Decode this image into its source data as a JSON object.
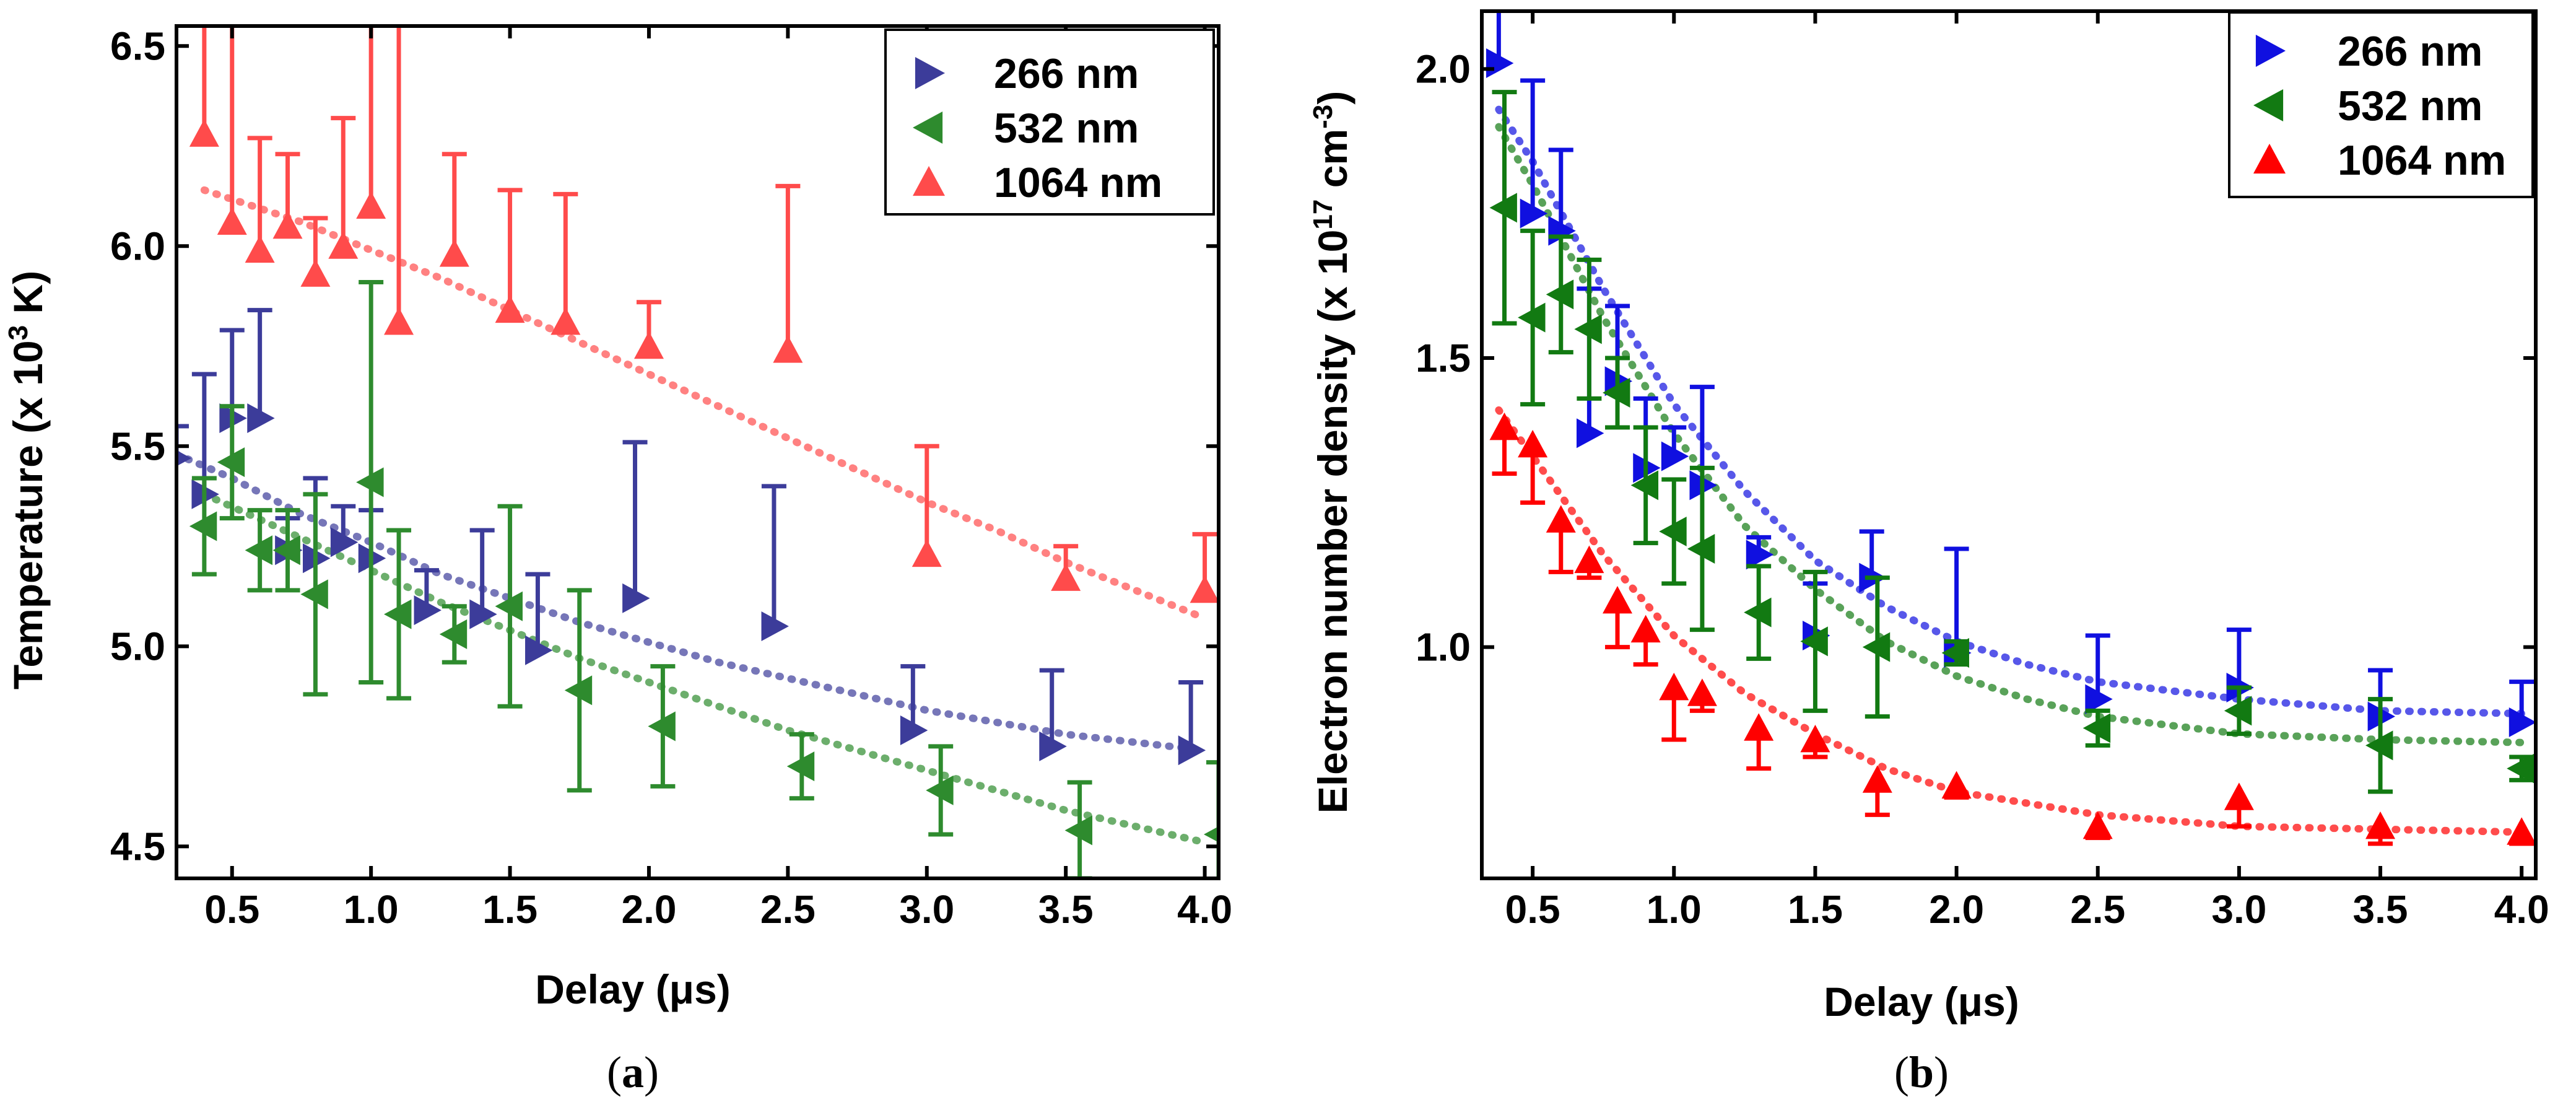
{
  "figure": {
    "panel_a_label": "(a)",
    "panel_b_label": "(b)"
  },
  "chart_data": [
    {
      "id": "a",
      "type": "scatter",
      "title": "",
      "xlabel": "Delay (μs)",
      "ylabel": "Temperature (x 10³ K)",
      "xlim": [
        0.3,
        4.05
      ],
      "ylim": [
        4.42,
        6.55
      ],
      "xticks": [
        0.5,
        1.0,
        1.5,
        2.0,
        2.5,
        3.0,
        3.5,
        4.0
      ],
      "xticklabels": [
        "0.5",
        "1.0",
        "1.5",
        "2.0",
        "2.5",
        "3.0",
        "3.5",
        "4.0"
      ],
      "yticks": [
        4.5,
        5.0,
        5.5,
        6.0,
        6.5
      ],
      "yticklabels": [
        "4.5",
        "5.0",
        "5.5",
        "6.0",
        "6.5"
      ],
      "legend_position": "top-right",
      "series": [
        {
          "name": "266 nm",
          "color": "#3c3c9a",
          "marker": "triangle-right",
          "error_style": "upper",
          "points": [
            {
              "x": 0.3,
              "y": 5.47,
              "err": 0.08
            },
            {
              "x": 0.4,
              "y": 5.38,
              "err": 0.3
            },
            {
              "x": 0.5,
              "y": 5.57,
              "err": 0.22
            },
            {
              "x": 0.6,
              "y": 5.57,
              "err": 0.27
            },
            {
              "x": 0.7,
              "y": 5.24,
              "err": 0.08
            },
            {
              "x": 0.8,
              "y": 5.22,
              "err": 0.2
            },
            {
              "x": 0.9,
              "y": 5.26,
              "err": 0.09
            },
            {
              "x": 1.0,
              "y": 5.22,
              "err": 0.12
            },
            {
              "x": 1.2,
              "y": 5.09,
              "err": 0.1
            },
            {
              "x": 1.4,
              "y": 5.08,
              "err": 0.21
            },
            {
              "x": 1.6,
              "y": 4.99,
              "err": 0.19
            },
            {
              "x": 1.95,
              "y": 5.12,
              "err": 0.39
            },
            {
              "x": 2.45,
              "y": 5.05,
              "err": 0.35
            },
            {
              "x": 2.95,
              "y": 4.79,
              "err": 0.16
            },
            {
              "x": 3.45,
              "y": 4.75,
              "err": 0.19
            },
            {
              "x": 3.95,
              "y": 4.74,
              "err": 0.17
            }
          ],
          "fit": [
            [
              0.3,
              5.48
            ],
            [
              0.5,
              5.42
            ],
            [
              0.75,
              5.33
            ],
            [
              1.0,
              5.26
            ],
            [
              1.25,
              5.18
            ],
            [
              1.5,
              5.12
            ],
            [
              1.75,
              5.06
            ],
            [
              2.0,
              5.01
            ],
            [
              2.25,
              4.96
            ],
            [
              2.5,
              4.92
            ],
            [
              2.75,
              4.88
            ],
            [
              3.0,
              4.84
            ],
            [
              3.25,
              4.81
            ],
            [
              3.5,
              4.78
            ],
            [
              3.75,
              4.76
            ],
            [
              4.0,
              4.74
            ]
          ]
        },
        {
          "name": "532 nm",
          "color": "#2e8b2e",
          "marker": "triangle-left",
          "error_style": "both",
          "points": [
            {
              "x": 0.4,
              "y": 5.3,
              "err": 0.12
            },
            {
              "x": 0.5,
              "y": 5.46,
              "err": 0.14
            },
            {
              "x": 0.6,
              "y": 5.24,
              "err": 0.1
            },
            {
              "x": 0.7,
              "y": 5.24,
              "err": 0.1
            },
            {
              "x": 0.8,
              "y": 5.13,
              "err": 0.25
            },
            {
              "x": 1.0,
              "y": 5.41,
              "err": 0.5
            },
            {
              "x": 1.1,
              "y": 5.08,
              "err": 0.21
            },
            {
              "x": 1.3,
              "y": 5.03,
              "err": 0.07
            },
            {
              "x": 1.5,
              "y": 5.1,
              "err": 0.25
            },
            {
              "x": 1.75,
              "y": 4.89,
              "err": 0.25
            },
            {
              "x": 2.05,
              "y": 4.8,
              "err": 0.15
            },
            {
              "x": 2.55,
              "y": 4.7,
              "err": 0.08
            },
            {
              "x": 3.05,
              "y": 4.64,
              "err": 0.11
            },
            {
              "x": 3.55,
              "y": 4.54,
              "err": 0.12
            },
            {
              "x": 4.05,
              "y": 4.53,
              "err": 0.18
            }
          ],
          "fit": [
            [
              0.4,
              5.38
            ],
            [
              0.75,
              5.27
            ],
            [
              1.0,
              5.19
            ],
            [
              1.25,
              5.11
            ],
            [
              1.5,
              5.04
            ],
            [
              1.75,
              4.97
            ],
            [
              2.0,
              4.91
            ],
            [
              2.25,
              4.85
            ],
            [
              2.5,
              4.79
            ],
            [
              2.75,
              4.74
            ],
            [
              3.0,
              4.69
            ],
            [
              3.25,
              4.64
            ],
            [
              3.5,
              4.59
            ],
            [
              3.75,
              4.55
            ],
            [
              4.0,
              4.51
            ]
          ]
        },
        {
          "name": "1064 nm",
          "color": "#ff4b4b",
          "marker": "triangle-up",
          "error_style": "upper",
          "points": [
            {
              "x": 0.4,
              "y": 6.28,
              "err": 0.6
            },
            {
              "x": 0.5,
              "y": 6.06,
              "err": 0.6
            },
            {
              "x": 0.6,
              "y": 5.99,
              "err": 0.28
            },
            {
              "x": 0.7,
              "y": 6.05,
              "err": 0.18
            },
            {
              "x": 0.8,
              "y": 5.93,
              "err": 0.14
            },
            {
              "x": 0.9,
              "y": 6.0,
              "err": 0.32
            },
            {
              "x": 1.0,
              "y": 6.1,
              "err": 0.6
            },
            {
              "x": 1.1,
              "y": 5.81,
              "err": 0.9
            },
            {
              "x": 1.3,
              "y": 5.98,
              "err": 0.25
            },
            {
              "x": 1.5,
              "y": 5.84,
              "err": 0.3
            },
            {
              "x": 1.7,
              "y": 5.81,
              "err": 0.32
            },
            {
              "x": 2.0,
              "y": 5.75,
              "err": 0.11
            },
            {
              "x": 2.5,
              "y": 5.74,
              "err": 0.41
            },
            {
              "x": 3.0,
              "y": 5.23,
              "err": 0.27
            },
            {
              "x": 3.5,
              "y": 5.17,
              "err": 0.08
            },
            {
              "x": 4.0,
              "y": 5.14,
              "err": 0.14
            }
          ],
          "fit": [
            [
              0.4,
              6.14
            ],
            [
              0.75,
              6.06
            ],
            [
              1.0,
              5.99
            ],
            [
              1.25,
              5.92
            ],
            [
              1.5,
              5.84
            ],
            [
              1.75,
              5.76
            ],
            [
              2.0,
              5.68
            ],
            [
              2.25,
              5.6
            ],
            [
              2.5,
              5.52
            ],
            [
              2.75,
              5.44
            ],
            [
              3.0,
              5.36
            ],
            [
              3.25,
              5.29
            ],
            [
              3.5,
              5.21
            ],
            [
              3.75,
              5.14
            ],
            [
              4.0,
              5.07
            ]
          ]
        }
      ]
    },
    {
      "id": "b",
      "type": "scatter",
      "title": "",
      "xlabel": "Delay (μs)",
      "ylabel": "Electron number density (x 10¹⁷ cm⁻³)",
      "xlim": [
        0.32,
        4.05
      ],
      "ylim": [
        0.6,
        2.1
      ],
      "xticks": [
        0.5,
        1.0,
        1.5,
        2.0,
        2.5,
        3.0,
        3.5,
        4.0
      ],
      "xticklabels": [
        "0.5",
        "1.0",
        "1.5",
        "2.0",
        "2.5",
        "3.0",
        "3.5",
        "4.0"
      ],
      "yticks": [
        1.0,
        1.5,
        2.0
      ],
      "yticklabels": [
        "1.0",
        "1.5",
        "2.0"
      ],
      "legend_position": "top-right",
      "series": [
        {
          "name": "266 nm",
          "color": "#1010e0",
          "marker": "triangle-right",
          "error_style": "upper",
          "points": [
            {
              "x": 0.38,
              "y": 2.01,
              "err": 0.25
            },
            {
              "x": 0.5,
              "y": 1.75,
              "err": 0.23
            },
            {
              "x": 0.6,
              "y": 1.72,
              "err": 0.14
            },
            {
              "x": 0.7,
              "y": 1.37,
              "err": 0.25
            },
            {
              "x": 0.8,
              "y": 1.46,
              "err": 0.13
            },
            {
              "x": 0.9,
              "y": 1.31,
              "err": 0.12
            },
            {
              "x": 1.0,
              "y": 1.33,
              "err": 0.05
            },
            {
              "x": 1.1,
              "y": 1.28,
              "err": 0.17
            },
            {
              "x": 1.3,
              "y": 1.16,
              "err": 0.03
            },
            {
              "x": 1.5,
              "y": 1.02,
              "err": 0.09
            },
            {
              "x": 1.7,
              "y": 1.12,
              "err": 0.08
            },
            {
              "x": 2.0,
              "y": 0.99,
              "err": 0.18
            },
            {
              "x": 2.5,
              "y": 0.91,
              "err": 0.11
            },
            {
              "x": 3.0,
              "y": 0.93,
              "err": 0.1
            },
            {
              "x": 3.5,
              "y": 0.88,
              "err": 0.08
            },
            {
              "x": 4.0,
              "y": 0.87,
              "err": 0.07
            }
          ],
          "fit": [
            [
              0.38,
              1.93
            ],
            [
              0.5,
              1.84
            ],
            [
              0.75,
              1.62
            ],
            [
              1.0,
              1.42
            ],
            [
              1.25,
              1.27
            ],
            [
              1.5,
              1.15
            ],
            [
              1.75,
              1.07
            ],
            [
              2.0,
              1.01
            ],
            [
              2.25,
              0.97
            ],
            [
              2.5,
              0.94
            ],
            [
              3.0,
              0.91
            ],
            [
              3.5,
              0.89
            ],
            [
              4.0,
              0.885
            ]
          ]
        },
        {
          "name": "532 nm",
          "color": "#127a12",
          "marker": "triangle-left",
          "error_style": "both",
          "points": [
            {
              "x": 0.4,
              "y": 1.76,
              "err": 0.2
            },
            {
              "x": 0.5,
              "y": 1.57,
              "err": 0.15
            },
            {
              "x": 0.6,
              "y": 1.61,
              "err": 0.1
            },
            {
              "x": 0.7,
              "y": 1.55,
              "err": 0.12
            },
            {
              "x": 0.8,
              "y": 1.44,
              "err": 0.06
            },
            {
              "x": 0.9,
              "y": 1.28,
              "err": 0.1
            },
            {
              "x": 1.0,
              "y": 1.2,
              "err": 0.09
            },
            {
              "x": 1.1,
              "y": 1.17,
              "err": 0.14
            },
            {
              "x": 1.3,
              "y": 1.06,
              "err": 0.08
            },
            {
              "x": 1.5,
              "y": 1.01,
              "err": 0.12
            },
            {
              "x": 1.72,
              "y": 1.0,
              "err": 0.12
            },
            {
              "x": 2.0,
              "y": 0.99,
              "err": 0.02
            },
            {
              "x": 2.5,
              "y": 0.86,
              "err": 0.03
            },
            {
              "x": 3.0,
              "y": 0.89,
              "err": 0.04
            },
            {
              "x": 3.5,
              "y": 0.83,
              "err": 0.08
            },
            {
              "x": 4.0,
              "y": 0.79,
              "err": 0.02
            }
          ],
          "fit": [
            [
              0.38,
              1.9
            ],
            [
              0.5,
              1.8
            ],
            [
              0.75,
              1.57
            ],
            [
              1.0,
              1.37
            ],
            [
              1.25,
              1.21
            ],
            [
              1.5,
              1.1
            ],
            [
              1.75,
              1.01
            ],
            [
              2.0,
              0.95
            ],
            [
              2.25,
              0.91
            ],
            [
              2.5,
              0.88
            ],
            [
              3.0,
              0.85
            ],
            [
              3.5,
              0.84
            ],
            [
              4.0,
              0.835
            ]
          ]
        },
        {
          "name": "1064 nm",
          "color": "#ff0000",
          "marker": "triangle-up",
          "error_style": "lower",
          "points": [
            {
              "x": 0.4,
              "y": 1.38,
              "err": 0.08
            },
            {
              "x": 0.5,
              "y": 1.35,
              "err": 0.1
            },
            {
              "x": 0.6,
              "y": 1.22,
              "err": 0.09
            },
            {
              "x": 0.7,
              "y": 1.15,
              "err": 0.03
            },
            {
              "x": 0.8,
              "y": 1.08,
              "err": 0.08
            },
            {
              "x": 0.9,
              "y": 1.03,
              "err": 0.06
            },
            {
              "x": 1.0,
              "y": 0.93,
              "err": 0.09
            },
            {
              "x": 1.1,
              "y": 0.92,
              "err": 0.03
            },
            {
              "x": 1.3,
              "y": 0.86,
              "err": 0.07
            },
            {
              "x": 1.5,
              "y": 0.84,
              "err": 0.03
            },
            {
              "x": 1.72,
              "y": 0.77,
              "err": 0.06
            },
            {
              "x": 2.0,
              "y": 0.76,
              "err": 0.02
            },
            {
              "x": 2.5,
              "y": 0.69,
              "err": 0.02
            },
            {
              "x": 3.0,
              "y": 0.74,
              "err": 0.05
            },
            {
              "x": 3.5,
              "y": 0.69,
              "err": 0.03
            },
            {
              "x": 4.0,
              "y": 0.68,
              "err": 0.02
            }
          ],
          "fit": [
            [
              0.38,
              1.41
            ],
            [
              0.5,
              1.33
            ],
            [
              0.75,
              1.16
            ],
            [
              1.0,
              1.02
            ],
            [
              1.25,
              0.92
            ],
            [
              1.5,
              0.85
            ],
            [
              1.75,
              0.79
            ],
            [
              2.0,
              0.75
            ],
            [
              2.5,
              0.71
            ],
            [
              3.0,
              0.69
            ],
            [
              3.5,
              0.685
            ],
            [
              4.0,
              0.68
            ]
          ]
        }
      ]
    }
  ]
}
